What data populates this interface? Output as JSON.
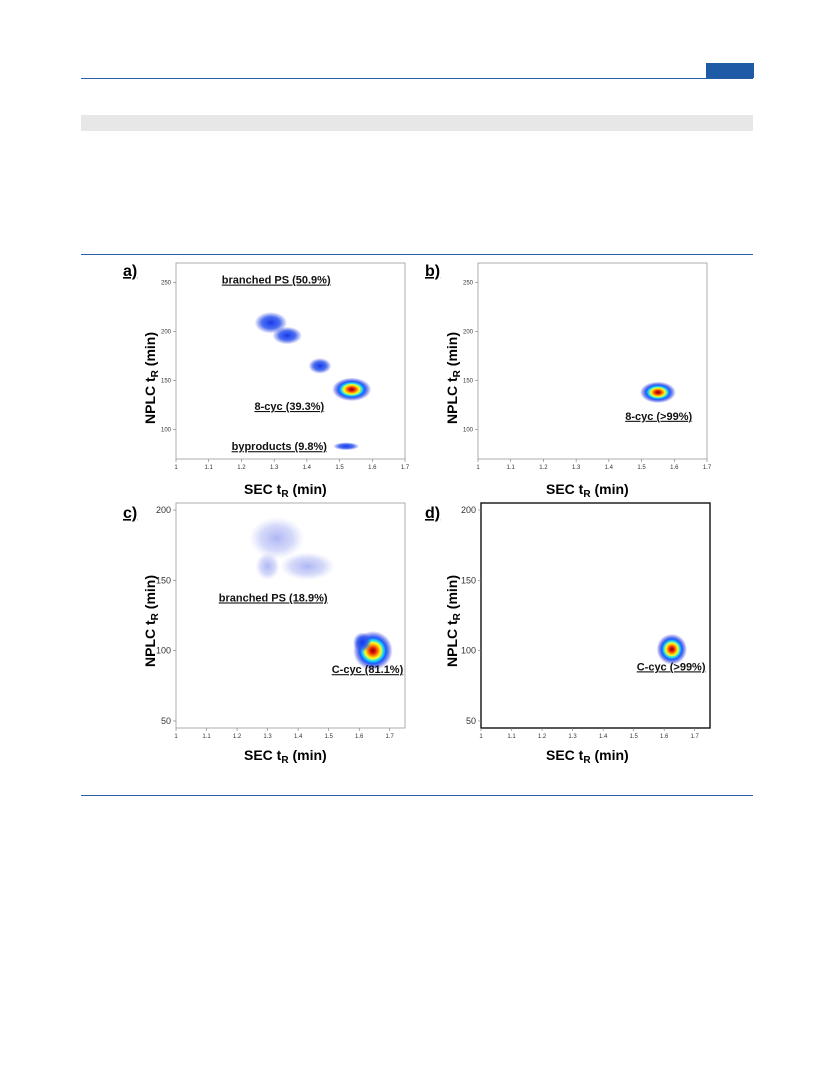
{
  "chart_data": [
    {
      "panel": "a)",
      "type": "heatmap",
      "xlabel": "SEC t",
      "xlabel_sub": "R",
      "xlabel_unit": " (min)",
      "ylabel": "NPLC t",
      "ylabel_sub": "R",
      "ylabel_unit": " (min)",
      "xlim": [
        1,
        1.7
      ],
      "ylim": [
        70,
        270
      ],
      "xticks": [
        "1",
        "1.1",
        "1.2",
        "1.3",
        "1.4",
        "1.5",
        "1.6",
        "1.7"
      ],
      "yticks": [
        "100",
        "150",
        "200",
        "250"
      ],
      "grid": false,
      "annotations": [
        {
          "text": "branched PS (50.9%)",
          "x": 1.14,
          "y": 249
        },
        {
          "text": "8-cyc (39.3%)",
          "x": 1.24,
          "y": 120
        },
        {
          "text": "byproducts (9.8%)",
          "x": 1.17,
          "y": 79
        }
      ],
      "blobs": [
        {
          "x": 1.29,
          "y": 209,
          "rx": 0.05,
          "ry": 11,
          "peak": 0.3
        },
        {
          "x": 1.34,
          "y": 196,
          "rx": 0.045,
          "ry": 9,
          "peak": 0.25
        },
        {
          "x": 1.44,
          "y": 165,
          "rx": 0.035,
          "ry": 8,
          "peak": 0.2
        },
        {
          "x": 1.537,
          "y": 141,
          "rx": 0.06,
          "ry": 12,
          "peak": 1.0
        },
        {
          "x": 1.52,
          "y": 83,
          "rx": 0.04,
          "ry": 4,
          "peak": 0.15
        }
      ]
    },
    {
      "panel": "b)",
      "type": "heatmap",
      "xlabel": "SEC t",
      "xlabel_sub": "R",
      "xlabel_unit": " (min)",
      "ylabel": "NPLC t",
      "ylabel_sub": "R",
      "ylabel_unit": " (min)",
      "xlim": [
        1,
        1.7
      ],
      "ylim": [
        70,
        270
      ],
      "xticks": [
        "1",
        "1.1",
        "1.2",
        "1.3",
        "1.4",
        "1.5",
        "1.6",
        "1.7"
      ],
      "yticks": [
        "100",
        "150",
        "200",
        "250"
      ],
      "grid": false,
      "annotations": [
        {
          "text": "8-cyc (>99%)",
          "x": 1.45,
          "y": 110
        }
      ],
      "blobs": [
        {
          "x": 1.55,
          "y": 138,
          "rx": 0.055,
          "ry": 11,
          "peak": 1.0
        }
      ]
    },
    {
      "panel": "c)",
      "type": "heatmap",
      "xlabel": "SEC t",
      "xlabel_sub": "R",
      "xlabel_unit": " (min)",
      "ylabel": "NPLC t",
      "ylabel_sub": "R",
      "ylabel_unit": " (min)",
      "xlim": [
        1,
        1.75
      ],
      "ylim": [
        45,
        205
      ],
      "xticks": [
        "1",
        "1.1",
        "1.2",
        "1.3",
        "1.4",
        "1.5",
        "1.6",
        "1.7"
      ],
      "yticks": [
        "50",
        "100",
        "150",
        "200"
      ],
      "grid": false,
      "annotations": [
        {
          "text": "branched PS (18.9%)",
          "x": 1.14,
          "y": 135
        },
        {
          "text": "C-cyc (81.1%)",
          "x": 1.51,
          "y": 84
        }
      ],
      "blobs": [
        {
          "x": 1.33,
          "y": 180,
          "rx": 0.09,
          "ry": 15,
          "peak": 0.1
        },
        {
          "x": 1.43,
          "y": 160,
          "rx": 0.09,
          "ry": 10,
          "peak": 0.1
        },
        {
          "x": 1.3,
          "y": 160,
          "rx": 0.04,
          "ry": 10,
          "peak": 0.09
        },
        {
          "x": 1.645,
          "y": 100,
          "rx": 0.065,
          "ry": 14,
          "peak": 1.0
        },
        {
          "x": 1.61,
          "y": 106,
          "rx": 0.03,
          "ry": 7,
          "peak": 0.35
        }
      ]
    },
    {
      "panel": "d)",
      "type": "heatmap",
      "xlabel": "SEC t",
      "xlabel_sub": "R",
      "xlabel_unit": " (min)",
      "ylabel": "NPLC t",
      "ylabel_sub": "R",
      "ylabel_unit": " (min)",
      "xlim": [
        1,
        1.75
      ],
      "ylim": [
        45,
        205
      ],
      "xticks": [
        "1",
        "1.1",
        "1.2",
        "1.3",
        "1.4",
        "1.5",
        "1.6",
        "1.7"
      ],
      "yticks": [
        "50",
        "100",
        "150",
        "200"
      ],
      "grid": false,
      "annotations": [
        {
          "text": "C-cyc (>99%)",
          "x": 1.51,
          "y": 86
        }
      ],
      "blobs": [
        {
          "x": 1.625,
          "y": 101,
          "rx": 0.05,
          "ry": 11,
          "peak": 1.0
        }
      ]
    }
  ]
}
